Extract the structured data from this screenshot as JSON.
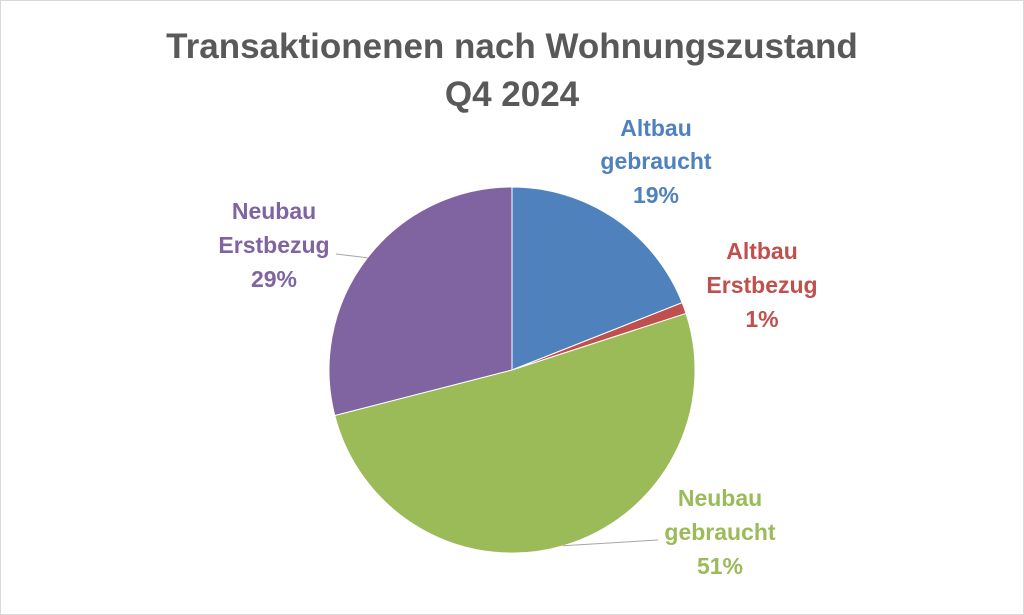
{
  "chart_data": {
    "type": "pie",
    "title_line1": "Transaktionenen nach Wohnungszustand",
    "title_line2": "Q4 2024",
    "slices": [
      {
        "line1": "Altbau",
        "line2": "gebraucht",
        "pct_label": "19%",
        "value": 19,
        "color": "#4f81bd"
      },
      {
        "line1": "Altbau",
        "line2": "Erstbezug",
        "pct_label": "1%",
        "value": 1,
        "color": "#c0504d"
      },
      {
        "line1": "Neubau",
        "line2": "gebraucht",
        "pct_label": "51%",
        "value": 51,
        "color": "#9bbb59"
      },
      {
        "line1": "Neubau",
        "line2": "Erstbezug",
        "pct_label": "29%",
        "value": 29,
        "color": "#8064a2"
      }
    ],
    "legend": "none"
  }
}
